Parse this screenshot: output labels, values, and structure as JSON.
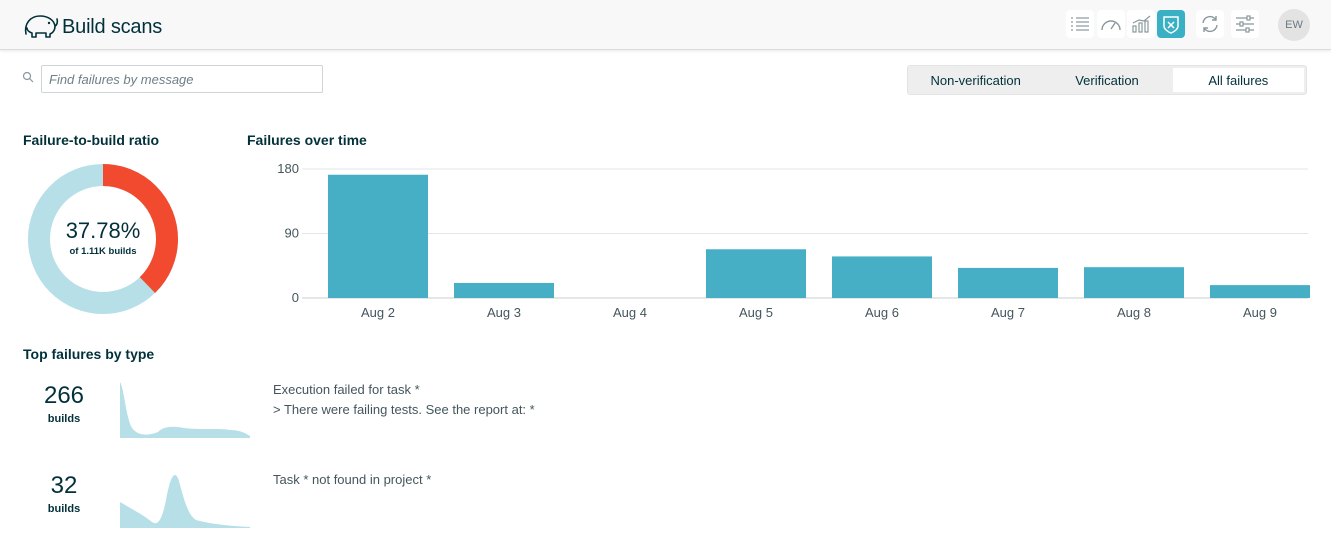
{
  "app": {
    "title": "Build scans"
  },
  "nav": {
    "icons": [
      "list-icon",
      "speedometer-icon",
      "trends-icon",
      "failures-shield-icon",
      "sync-icon",
      "settings-sliders-icon"
    ],
    "active_icon": "failures-shield-icon",
    "accent_color": "#3ab0c4"
  },
  "user": {
    "initials": "EW"
  },
  "search": {
    "placeholder": "Find failures by message",
    "value": ""
  },
  "filter_tabs": {
    "options": [
      "Non-verification",
      "Verification",
      "All failures"
    ],
    "selected": "All failures"
  },
  "ratio": {
    "title": "Failure-to-build ratio",
    "percent_text": "37.78%",
    "percent": 37.78,
    "subtitle": "of 1.11K builds",
    "failed_color": "#f14a2f",
    "other_color": "#b6dfe7"
  },
  "over_time": {
    "title": "Failures over time"
  },
  "chart_data": {
    "type": "bar",
    "title": "Failures over time",
    "categories": [
      "Aug 2",
      "Aug 3",
      "Aug 4",
      "Aug 5",
      "Aug 6",
      "Aug 7",
      "Aug 8",
      "Aug 9"
    ],
    "values": [
      172,
      21,
      0,
      68,
      58,
      42,
      43,
      18
    ],
    "ylim": [
      0,
      180
    ],
    "yticks": [
      0,
      90,
      180
    ],
    "grid": true,
    "bar_color": "#46afc5"
  },
  "top_failures": {
    "title": "Top failures by type",
    "items": [
      {
        "count": "266",
        "unit": "builds",
        "message_lines": [
          "Execution failed for task *",
          "> There were failing tests. See the report at: *"
        ]
      },
      {
        "count": "32",
        "unit": "builds",
        "message_lines": [
          "Task * not found in project *"
        ]
      }
    ]
  }
}
